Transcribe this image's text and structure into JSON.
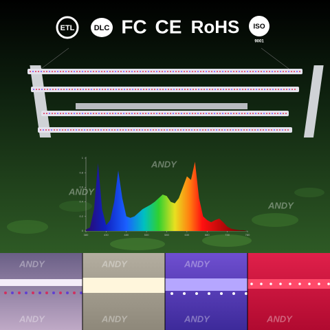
{
  "certifications": [
    "ETL",
    "DLC",
    "FC",
    "CE",
    "RoHS",
    "ISO",
    "9001"
  ],
  "watermark": "ANDY",
  "chart_data": {
    "type": "area",
    "x": [
      380,
      390,
      400,
      410,
      420,
      430,
      440,
      450,
      460,
      470,
      480,
      490,
      500,
      510,
      520,
      530,
      540,
      550,
      560,
      570,
      580,
      590,
      600,
      610,
      620,
      630,
      640,
      650,
      660,
      670,
      680,
      690,
      700,
      710,
      720,
      730,
      740,
      750,
      760,
      770,
      780
    ],
    "values": [
      0.02,
      0.05,
      0.3,
      0.93,
      0.3,
      0.08,
      0.15,
      0.4,
      0.83,
      0.45,
      0.2,
      0.18,
      0.2,
      0.25,
      0.3,
      0.33,
      0.36,
      0.4,
      0.45,
      0.5,
      0.48,
      0.4,
      0.38,
      0.45,
      0.6,
      0.75,
      0.7,
      0.95,
      0.45,
      0.2,
      0.15,
      0.12,
      0.15,
      0.17,
      0.12,
      0.06,
      0.03,
      0.02,
      0.01,
      0.01,
      0
    ],
    "xlim": [
      380,
      780
    ],
    "ylim": [
      0,
      1
    ],
    "xticks": [
      380,
      430,
      480,
      530,
      580,
      630,
      680,
      730,
      780
    ],
    "yticks": [
      0,
      0.2,
      0.4,
      0.6,
      0.8,
      1
    ]
  }
}
